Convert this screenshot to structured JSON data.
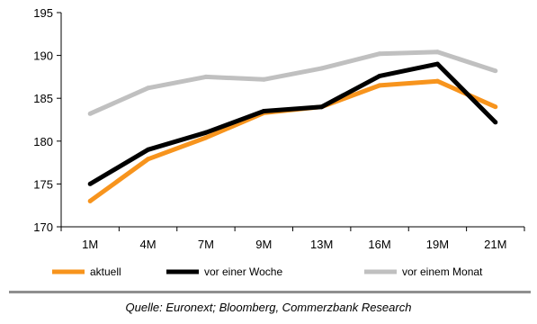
{
  "chart_data": {
    "type": "line",
    "categories": [
      "1M",
      "4M",
      "7M",
      "9M",
      "13M",
      "16M",
      "19M",
      "21M"
    ],
    "series": [
      {
        "name": "aktuell",
        "color": "#f7941d",
        "values": [
          173.0,
          177.9,
          180.4,
          183.3,
          184.0,
          186.5,
          187.0,
          184.0
        ]
      },
      {
        "name": "vor einer Woche",
        "color": "#000000",
        "values": [
          175.0,
          179.0,
          181.0,
          183.5,
          184.0,
          187.6,
          189.0,
          182.2
        ]
      },
      {
        "name": "vor einem Monat",
        "color": "#c0c0c0",
        "values": [
          183.2,
          186.2,
          187.5,
          187.2,
          188.5,
          190.2,
          190.4,
          188.2
        ]
      }
    ],
    "y_ticks": [
      "195",
      "190",
      "185",
      "180",
      "175",
      "170"
    ],
    "ylim": [
      170,
      195
    ],
    "grid": false,
    "legend_position": "bottom"
  },
  "source_note": "Quelle: Euronext; Bloomberg, Commerzbank Research"
}
